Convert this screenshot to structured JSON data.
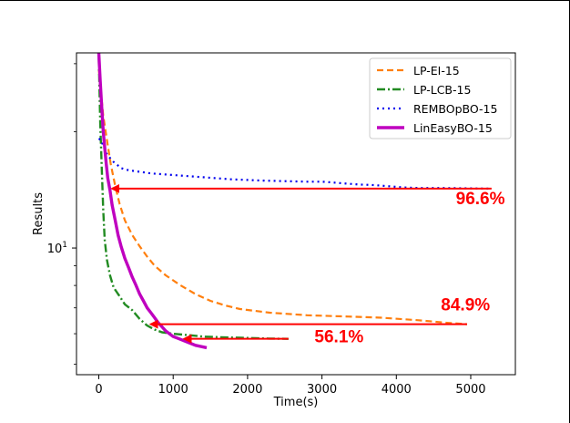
{
  "chart_data": {
    "type": "line",
    "title": "",
    "xlabel": "Time(s)",
    "ylabel": "Results",
    "xlim": [
      -300,
      5600
    ],
    "ylim": [
      4.7,
      32
    ],
    "yscale": "log",
    "grid": false,
    "legend_placement": "top-right",
    "x_ticks": [
      0,
      1000,
      2000,
      3000,
      4000,
      5000
    ],
    "x_tick_labels": [
      "0",
      "1000",
      "2000",
      "3000",
      "4000",
      "5000"
    ],
    "y_ticks": [
      10
    ],
    "y_tick_labels": [
      "10^1"
    ],
    "y_tick_label_base": "10",
    "y_tick_label_exp": "1",
    "series": [
      {
        "name": "LP-EI-15",
        "color": "#ff7f0e",
        "style": "dashed",
        "x": [
          0,
          60,
          110,
          160,
          220,
          280,
          350,
          450,
          550,
          650,
          750,
          900,
          1100,
          1300,
          1500,
          1700,
          1900,
          2300,
          2800,
          3300,
          3800,
          4300,
          4700,
          4950
        ],
        "y": [
          29,
          22,
          19,
          16.5,
          14.5,
          13,
          11.8,
          10.8,
          10.1,
          9.5,
          9.0,
          8.5,
          8.0,
          7.6,
          7.3,
          7.1,
          6.95,
          6.8,
          6.7,
          6.65,
          6.6,
          6.5,
          6.4,
          6.35
        ]
      },
      {
        "name": "LP-LCB-15",
        "color": "#228b22",
        "style": "dashdot",
        "x": [
          0,
          20,
          40,
          60,
          80,
          110,
          150,
          200,
          280,
          350,
          450,
          550,
          650,
          750,
          850,
          1000,
          1200,
          1400,
          1700,
          2000,
          2300,
          2550
        ],
        "y": [
          31,
          21,
          16,
          12.5,
          10.5,
          9.3,
          8.5,
          7.9,
          7.5,
          7.15,
          6.9,
          6.55,
          6.3,
          6.15,
          6.05,
          6.0,
          5.95,
          5.9,
          5.87,
          5.85,
          5.83,
          5.82
        ]
      },
      {
        "name": "REMBOpBO-15",
        "color": "#0000ee",
        "style": "dotted",
        "x": [
          0,
          30,
          60,
          100,
          150,
          200,
          250,
          300,
          400,
          500,
          600,
          700,
          800,
          900,
          1000,
          1200,
          1400,
          1600,
          1800,
          2000,
          2200,
          2500,
          2800,
          3000,
          3100,
          3300,
          3500,
          3700,
          3900,
          4100,
          4300,
          4600,
          4900,
          5250
        ],
        "y": [
          19.2,
          19.0,
          18.4,
          17.6,
          17.1,
          16.7,
          16.4,
          16.1,
          15.9,
          15.8,
          15.7,
          15.6,
          15.55,
          15.5,
          15.45,
          15.35,
          15.25,
          15.15,
          15.05,
          15.0,
          14.95,
          14.9,
          14.85,
          14.85,
          14.8,
          14.7,
          14.6,
          14.55,
          14.45,
          14.35,
          14.3,
          14.3,
          14.28,
          14.25
        ]
      },
      {
        "name": "LinEasyBO-15",
        "color": "#bf00bf",
        "style": "solid",
        "x": [
          0,
          20,
          40,
          60,
          80,
          100,
          120,
          150,
          180,
          220,
          260,
          300,
          350,
          400,
          450,
          500,
          550,
          600,
          650,
          700,
          750,
          800,
          850,
          900,
          950,
          1000,
          1050,
          1100,
          1200,
          1300,
          1450
        ],
        "y": [
          32,
          27,
          23,
          20,
          18.2,
          16.5,
          15.2,
          14.1,
          12.9,
          11.8,
          10.8,
          10.1,
          9.4,
          8.9,
          8.4,
          8.0,
          7.6,
          7.3,
          7.0,
          6.8,
          6.6,
          6.4,
          6.25,
          6.1,
          6.0,
          5.9,
          5.85,
          5.8,
          5.7,
          5.6,
          5.52
        ]
      }
    ],
    "annotations": [
      {
        "text": "96.6%",
        "x": 4800,
        "y": 13.0,
        "arrow_from_x": 5280,
        "arrow_to_x": 180,
        "arrow_y": 14.25
      },
      {
        "text": "84.9%",
        "x": 4600,
        "y": 6.9,
        "arrow_from_x": 4950,
        "arrow_to_x": 700,
        "arrow_y": 6.35
      },
      {
        "text": "56.1%",
        "x": 2900,
        "y": 5.7,
        "arrow_from_x": 2550,
        "arrow_to_x": 1150,
        "arrow_y": 5.82
      }
    ],
    "annotation_color": "#ff0000"
  }
}
